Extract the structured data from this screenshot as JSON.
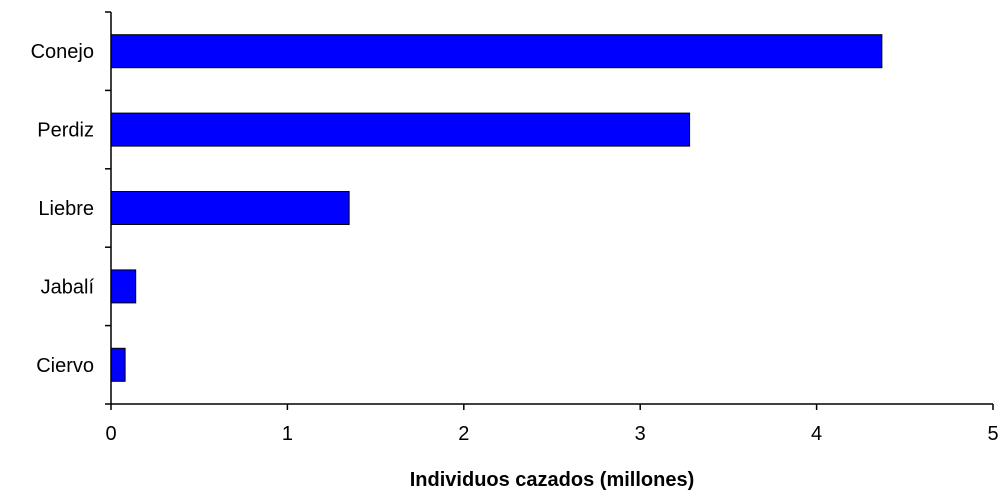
{
  "chart_data": {
    "type": "bar",
    "orientation": "horizontal",
    "title": "",
    "xlabel": "Individuos cazados (millones)",
    "ylabel": "",
    "categories": [
      "Conejo",
      "Perdiz",
      "Liebre",
      "Jabalí",
      "Ciervo"
    ],
    "values": [
      4.37,
      3.28,
      1.35,
      0.14,
      0.08
    ],
    "xlim": [
      0,
      5
    ],
    "xticks": [
      "0",
      "1",
      "2",
      "3",
      "4",
      "5"
    ],
    "grid": false,
    "legend": "none",
    "colors": {
      "bar_fill": "#0000ff",
      "bar_stroke": "#000000",
      "axis": "#000000"
    }
  }
}
